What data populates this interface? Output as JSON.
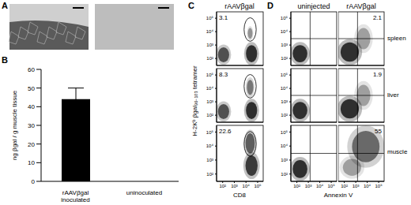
{
  "panel_labels": [
    "A",
    "B",
    "C",
    "D"
  ],
  "chart_data": [
    {
      "type": "bar",
      "categories": [
        "rAAVβgal inoculated",
        "uninoculated"
      ],
      "values": [
        44,
        0
      ],
      "error": [
        6,
        null
      ],
      "color": "#000000",
      "ylim": [
        0,
        60
      ],
      "yticks": [
        0,
        10,
        20,
        30,
        40,
        50,
        60
      ],
      "y_label": "ng βgal / g muscle tissue"
    },
    {
      "type": "scatter",
      "title": "rAAVβgal",
      "x_label": "CD8",
      "y_label": "H-2Kᵇ βgal₉₆₋₁₀₃ tetramer",
      "log": true,
      "xlim": [
        30,
        300000
      ],
      "ylim": [
        30,
        300000
      ],
      "xticks": [
        {
          "value": 100,
          "label": "10²"
        },
        {
          "value": 1000,
          "label": "10³"
        },
        {
          "value": 10000,
          "label": "10⁴"
        },
        {
          "value": 100000,
          "label": "10⁵"
        }
      ],
      "yticks": [
        {
          "value": 100,
          "label": "10²"
        },
        {
          "value": 1000,
          "label": "10³"
        },
        {
          "value": 10000,
          "label": "10⁴"
        },
        {
          "value": 100000,
          "label": "10⁵"
        }
      ],
      "gate_percentages": [
        3.1,
        8.3,
        22.6
      ]
    },
    {
      "type": "scatter",
      "x_label": "Annexin V",
      "log": true,
      "xlim": [
        30,
        300000
      ],
      "ylim": [
        30,
        300000
      ],
      "xticks": [
        {
          "value": 100,
          "label": "10²"
        },
        {
          "value": 1000,
          "label": "10³"
        },
        {
          "value": 10000,
          "label": "10⁴"
        },
        {
          "value": 100000,
          "label": "10⁵"
        }
      ],
      "yticks": [
        {
          "value": 100,
          "label": "10²"
        },
        {
          "value": 1000,
          "label": "10³"
        },
        {
          "value": 10000,
          "label": "10⁴"
        },
        {
          "value": 100000,
          "label": "10⁵"
        }
      ],
      "columns": [
        "uninjected",
        "rAAVβgal"
      ],
      "rows": [
        "spleen",
        "liver",
        "muscle"
      ],
      "gate_percentages": [
        [
          null,
          2.1
        ],
        [
          null,
          1.9
        ],
        [
          null,
          55
        ]
      ]
    }
  ]
}
